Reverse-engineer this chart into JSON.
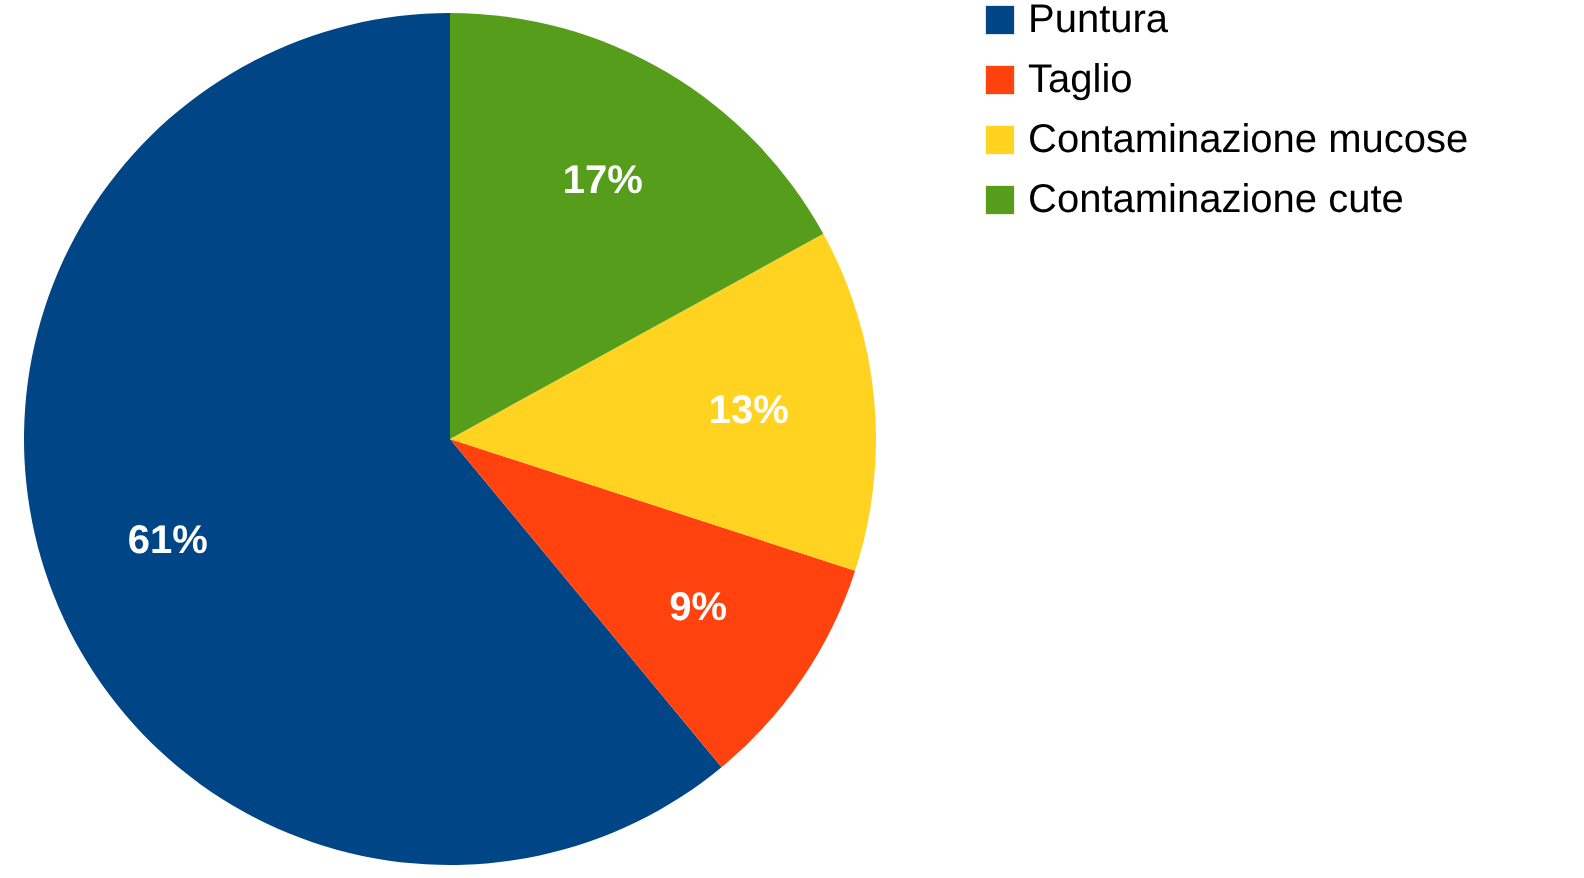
{
  "chart_data": {
    "type": "pie",
    "categories": [
      "Puntura",
      "Taglio",
      "Contaminazione mucose",
      "Contaminazione cute"
    ],
    "values": [
      61,
      9,
      13,
      17
    ],
    "colors": [
      "#004586",
      "#ff420e",
      "#ffd320",
      "#579d1c"
    ],
    "value_labels": [
      "61%",
      "9%",
      "13%",
      "17%"
    ],
    "legend": "right"
  }
}
